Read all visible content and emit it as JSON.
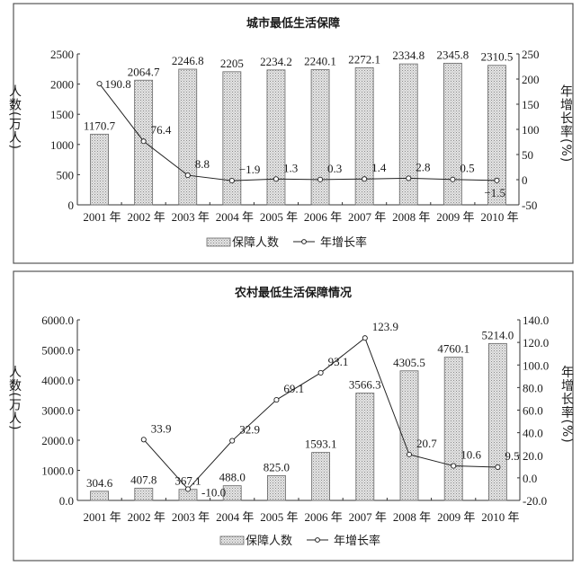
{
  "legend": {
    "bar": "保障人数",
    "line": "年增长率"
  },
  "colors": {
    "bar_fill": "#cfcfcf",
    "line": "#222222",
    "frame": "#555555"
  },
  "chart_data": [
    {
      "type": "bar+line",
      "title": "城市最低生活保障",
      "ylabel": "人数(万人)",
      "y2label": "年增长率(%)",
      "categories": [
        "2001 年",
        "2002 年",
        "2003 年",
        "2004 年",
        "2005 年",
        "2006 年",
        "2007 年",
        "2008 年",
        "2009 年",
        "2010 年"
      ],
      "bar_labels": [
        "1170.7",
        "2064.7",
        "2246.8",
        "2205",
        "2234.2",
        "2240.1",
        "2272.1",
        "2334.8",
        "2345.8",
        "2310.5"
      ],
      "values": [
        1170.7,
        2064.7,
        2246.8,
        2205,
        2234.2,
        2240.1,
        2272.1,
        2334.8,
        2345.8,
        2310.5
      ],
      "growth_labels": [
        "190.8",
        "76.4",
        "8.8",
        "−1.9",
        "1.3",
        "0.3",
        "1.4",
        "2.8",
        "0.5",
        "−1.5"
      ],
      "growth": [
        190.8,
        76.4,
        8.8,
        -1.9,
        1.3,
        0.3,
        1.4,
        2.8,
        0.5,
        -1.5
      ],
      "ylim": [
        0,
        2500
      ],
      "yticks": [
        "0",
        "500",
        "1000",
        "1500",
        "2000",
        "2500"
      ],
      "y2lim": [
        -50,
        250
      ],
      "y2ticks": [
        "-50",
        "0",
        "50",
        "100",
        "150",
        "200",
        "250"
      ],
      "legend_position": "bottom"
    },
    {
      "type": "bar+line",
      "title": "农村最低生活保障情况",
      "ylabel": "人数(万人)",
      "y2label": "年增长率(%)",
      "categories": [
        "2001 年",
        "2002 年",
        "2003 年",
        "2004 年",
        "2005 年",
        "2006 年",
        "2007 年",
        "2008 年",
        "2009 年",
        "2010 年"
      ],
      "bar_labels": [
        "304.6",
        "407.8",
        "367.1",
        "488.0",
        "825.0",
        "1593.1",
        "3566.3",
        "4305.5",
        "4760.1",
        "5214.0"
      ],
      "values": [
        304.6,
        407.8,
        367.1,
        488.0,
        825.0,
        1593.1,
        3566.3,
        4305.5,
        4760.1,
        5214.0
      ],
      "growth_labels": [
        null,
        "33.9",
        "-10.0",
        "32.9",
        "69.1",
        "93.1",
        "123.9",
        "20.7",
        "10.6",
        "9.5"
      ],
      "growth": [
        null,
        33.9,
        -10.0,
        32.9,
        69.1,
        93.1,
        123.9,
        20.7,
        10.6,
        9.5
      ],
      "ylim": [
        0,
        6000
      ],
      "yticks": [
        "0.0",
        "1000.0",
        "2000.0",
        "3000.0",
        "4000.0",
        "5000.0",
        "6000.0"
      ],
      "y2lim": [
        -20,
        140
      ],
      "y2ticks": [
        "-20.0",
        "0.0",
        "20.0",
        "40.0",
        "60.0",
        "80.0",
        "100.0",
        "120.0",
        "140.0"
      ],
      "legend_position": "bottom"
    }
  ]
}
